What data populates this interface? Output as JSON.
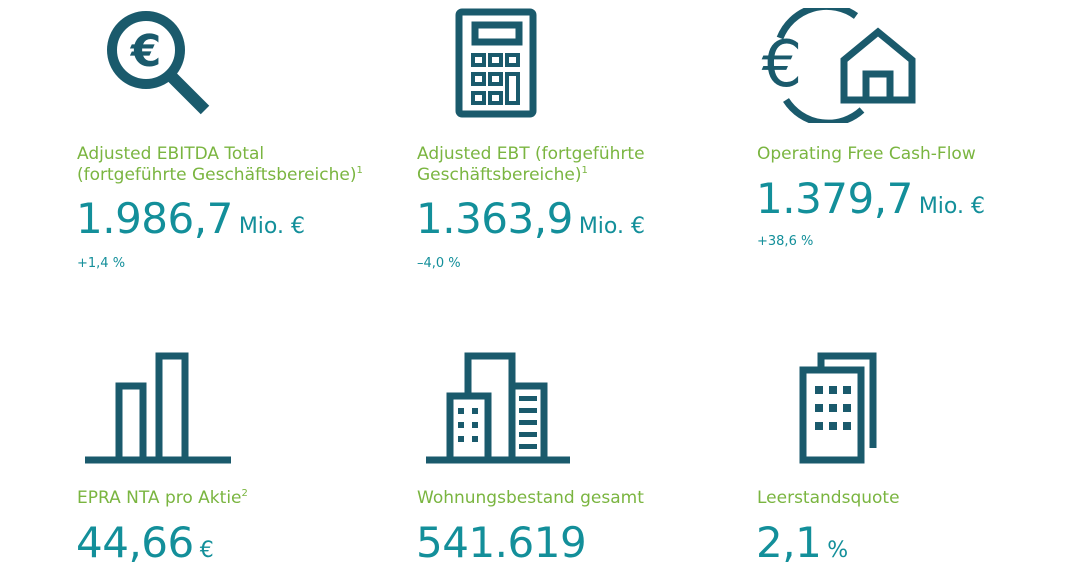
{
  "colors": {
    "icon": "#1a5a6c",
    "label": "#7ab540",
    "value": "#138f9a"
  },
  "kpis": [
    {
      "icon": "euro-magnifier-icon",
      "label_line1": "Adjusted EBITDA Total",
      "label_line2": "(fortgeführte Geschäftsbereiche)",
      "footnote": "1",
      "value": "1.986,7",
      "unit": "Mio. €",
      "change": "+1,4 %"
    },
    {
      "icon": "calculator-icon",
      "label_line1": "Adjusted EBT (fortgeführte",
      "label_line2": "Geschäftsbereiche)",
      "footnote": "1",
      "value": "1.363,9",
      "unit": "Mio. €",
      "change": "–4,0 %"
    },
    {
      "icon": "euro-house-cycle-icon",
      "label_line1": "Operating Free Cash-Flow",
      "value": "1.379,7",
      "unit": "Mio. €",
      "change": "+38,6 %"
    },
    {
      "icon": "bar-chart-icon",
      "label_line1": "EPRA NTA pro Aktie",
      "footnote": "2",
      "value": "44,66",
      "unit": "€"
    },
    {
      "icon": "buildings-icon",
      "label_line1": "Wohnungsbestand gesamt",
      "value": "541.619"
    },
    {
      "icon": "office-building-icon",
      "label_line1": "Leerstandsquote",
      "value": "2,1",
      "unit": "%"
    }
  ]
}
